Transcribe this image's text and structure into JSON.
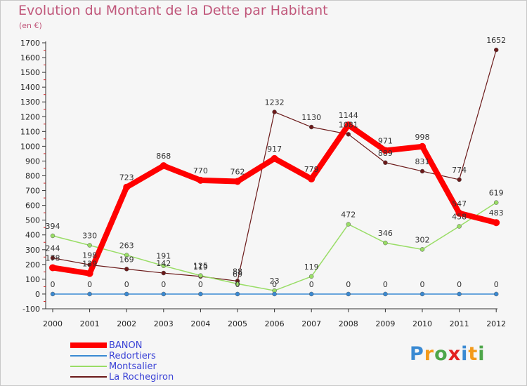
{
  "title": "Evolution du Montant de la Dette par Habitant",
  "unit": "(en €)",
  "chart_data": {
    "type": "line",
    "x": [
      "2000",
      "2001",
      "2002",
      "2003",
      "2004",
      "2005",
      "2006",
      "2007",
      "2008",
      "2009",
      "2010",
      "2011",
      "2012"
    ],
    "ylim": [
      -100,
      1700
    ],
    "yticks": [
      -100,
      0,
      100,
      200,
      300,
      400,
      500,
      600,
      700,
      800,
      900,
      1000,
      1100,
      1200,
      1300,
      1400,
      1500,
      1600,
      1700
    ],
    "grid": false,
    "legend": "bottom-left",
    "series": [
      {
        "name": "BANON",
        "color": "#ff0000",
        "values": [
          178,
          139,
          723,
          868,
          770,
          762,
          917,
          779,
          1144,
          971,
          998,
          547,
          483
        ]
      },
      {
        "name": "Redortiers",
        "color": "#3a8ad3",
        "values": [
          0,
          0,
          0,
          0,
          0,
          0,
          0,
          0,
          0,
          0,
          0,
          0,
          0
        ]
      },
      {
        "name": "Montsalier",
        "color": "#99dd66",
        "values": [
          394,
          330,
          263,
          191,
          125,
          69,
          23,
          119,
          472,
          346,
          302,
          458,
          619
        ]
      },
      {
        "name": "La Rochegiron",
        "color": "#6b1a1a",
        "values": [
          244,
          198,
          169,
          142,
          119,
          88,
          1232,
          1130,
          1081,
          889,
          831,
          774,
          1652
        ]
      }
    ]
  },
  "logo": {
    "letters": [
      "P",
      "r",
      "o",
      "x",
      "i",
      "t",
      "i"
    ],
    "colors": [
      "#3a8ad3",
      "#f39a1b",
      "#4ea64a",
      "#e32121",
      "#3a8ad3",
      "#f39a1b",
      "#4ea64a"
    ]
  }
}
